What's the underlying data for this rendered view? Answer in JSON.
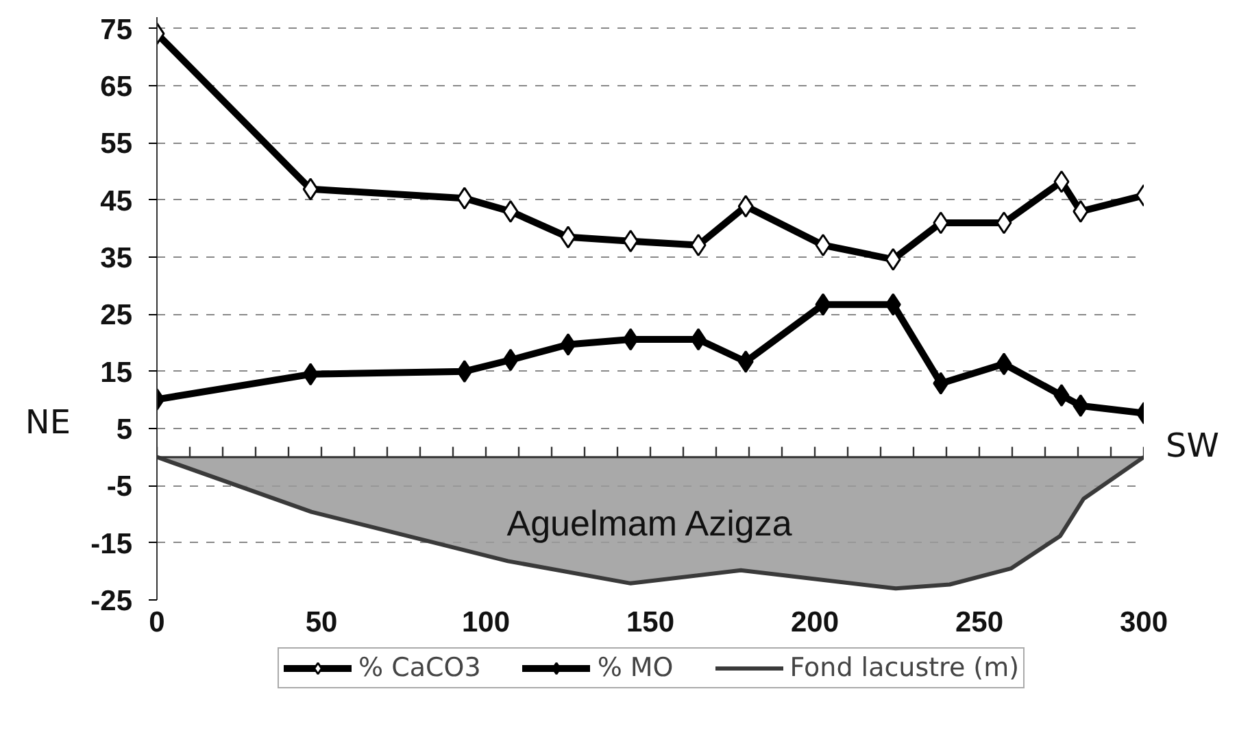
{
  "chart_data": {
    "type": "line",
    "x": [
      0,
      46.7,
      93.5,
      107.5,
      125,
      144,
      164.6,
      179,
      202.5,
      223.8,
      238.3,
      257.5,
      275,
      280.8,
      300
    ],
    "series": [
      {
        "name": "% CaCO3",
        "color": "#000000",
        "marker": "diamond",
        "colors": [
          "#ffffff",
          "#ffffff",
          "#ffffff",
          "#ffffff",
          "#ffffff",
          "#ffffff",
          "#ffffff",
          "#ffffff",
          "#ffffff",
          "#ffffff",
          "#ffffff",
          "#ffffff",
          "#ffffff",
          "#ffffff",
          "#ffffff"
        ],
        "values": [
          74.1,
          46.9,
          45.3,
          43,
          38.5,
          37.8,
          37.1,
          43.9,
          37.1,
          34.6,
          41,
          41,
          48.2,
          43,
          45.8
        ]
      },
      {
        "name": "% MO",
        "color": "#000000",
        "marker": "diamond",
        "values": [
          10.1,
          14.5,
          15,
          17,
          19.7,
          20.6,
          20.6,
          16.7,
          26.7,
          26.7,
          12.9,
          16.3,
          10.8,
          9,
          7.7
        ]
      },
      {
        "name": "Fond lacustre (m)",
        "type": "area",
        "color": "#3a3a3a",
        "marker": "none",
        "x": [
          0,
          47,
          106.7,
          144,
          177.5,
          224.6,
          241,
          259.6,
          274.6,
          281.7,
          300
        ],
        "values": [
          0,
          -9.6,
          -18.2,
          -22.1,
          -19.8,
          -23,
          -22.3,
          -19.5,
          -13.8,
          -7.3,
          0
        ]
      }
    ],
    "xlim": [
      0,
      300
    ],
    "xticks": [
      0,
      {
        "value": 10,
        "label": null
      },
      {
        "value": 20,
        "label": null
      },
      {
        "value": 30,
        "label": null
      },
      {
        "value": 40,
        "label": null
      },
      50,
      {
        "value": 60,
        "label": null
      },
      {
        "value": 70,
        "label": null
      },
      {
        "value": 80,
        "label": null
      },
      {
        "value": 90,
        "label": null
      },
      100,
      {
        "value": 110,
        "label": null
      },
      {
        "value": 120,
        "label": null
      },
      {
        "value": 130,
        "label": null
      },
      {
        "value": 140,
        "label": null
      },
      150,
      {
        "value": 160,
        "label": null
      },
      {
        "value": 170,
        "label": null
      },
      {
        "value": 180,
        "label": null
      },
      {
        "value": 190,
        "label": null
      },
      200,
      {
        "value": 210,
        "label": null
      },
      {
        "value": 220,
        "label": null
      },
      {
        "value": 230,
        "label": null
      },
      {
        "value": 240,
        "label": null
      },
      250,
      {
        "value": 260,
        "label": null
      },
      {
        "value": 270,
        "label": null
      },
      {
        "value": 280,
        "label": null
      },
      {
        "value": 290,
        "label": null
      },
      300
    ],
    "ylim": [
      -25,
      77
    ],
    "yticks": [
      75,
      65,
      55,
      45,
      35,
      25,
      15,
      5,
      -5,
      -15,
      -25
    ],
    "grid": "y",
    "legend": "bottom",
    "line_style": "solid",
    "annotations": [
      "Aguelmam Azigza",
      "NE",
      "SW"
    ]
  }
}
